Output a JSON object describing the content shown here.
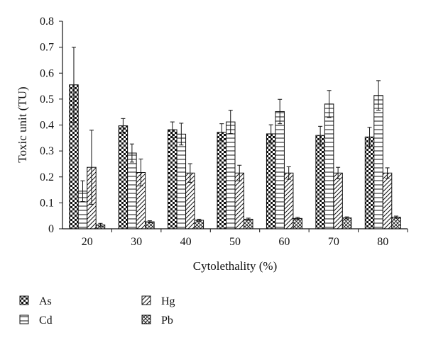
{
  "chart_data": {
    "type": "bar",
    "title": "",
    "xlabel": "Cytolethality (%)",
    "ylabel": "Toxic unit (TU)",
    "ylim": [
      0,
      0.8
    ],
    "yticks": [
      "0",
      "0.1",
      "0.2",
      "0.3",
      "0.4",
      "0.5",
      "0.6",
      "0.7",
      "0.8"
    ],
    "categories": [
      "20",
      "30",
      "40",
      "50",
      "60",
      "70",
      "80"
    ],
    "grid": false,
    "legend_position": "bottom-left",
    "error_bars": true,
    "series": [
      {
        "name": "As",
        "pattern": "checker",
        "values": [
          0.555,
          0.397,
          0.382,
          0.372,
          0.366,
          0.36,
          0.354
        ],
        "errors": [
          0.145,
          0.028,
          0.03,
          0.033,
          0.035,
          0.035,
          0.037
        ]
      },
      {
        "name": "Cd",
        "pattern": "horizontal",
        "values": [
          0.145,
          0.292,
          0.365,
          0.412,
          0.452,
          0.481,
          0.514
        ],
        "errors": [
          0.04,
          0.035,
          0.042,
          0.045,
          0.047,
          0.052,
          0.057
        ]
      },
      {
        "name": "Hg",
        "pattern": "diagonal",
        "values": [
          0.237,
          0.217,
          0.215,
          0.215,
          0.215,
          0.215,
          0.215
        ],
        "errors": [
          0.143,
          0.052,
          0.036,
          0.03,
          0.024,
          0.022,
          0.02
        ]
      },
      {
        "name": "Pb",
        "pattern": "crosshatch",
        "values": [
          0.015,
          0.027,
          0.033,
          0.037,
          0.04,
          0.042,
          0.045
        ],
        "errors": [
          0.006,
          0.004,
          0.004,
          0.004,
          0.004,
          0.004,
          0.004
        ]
      }
    ]
  }
}
